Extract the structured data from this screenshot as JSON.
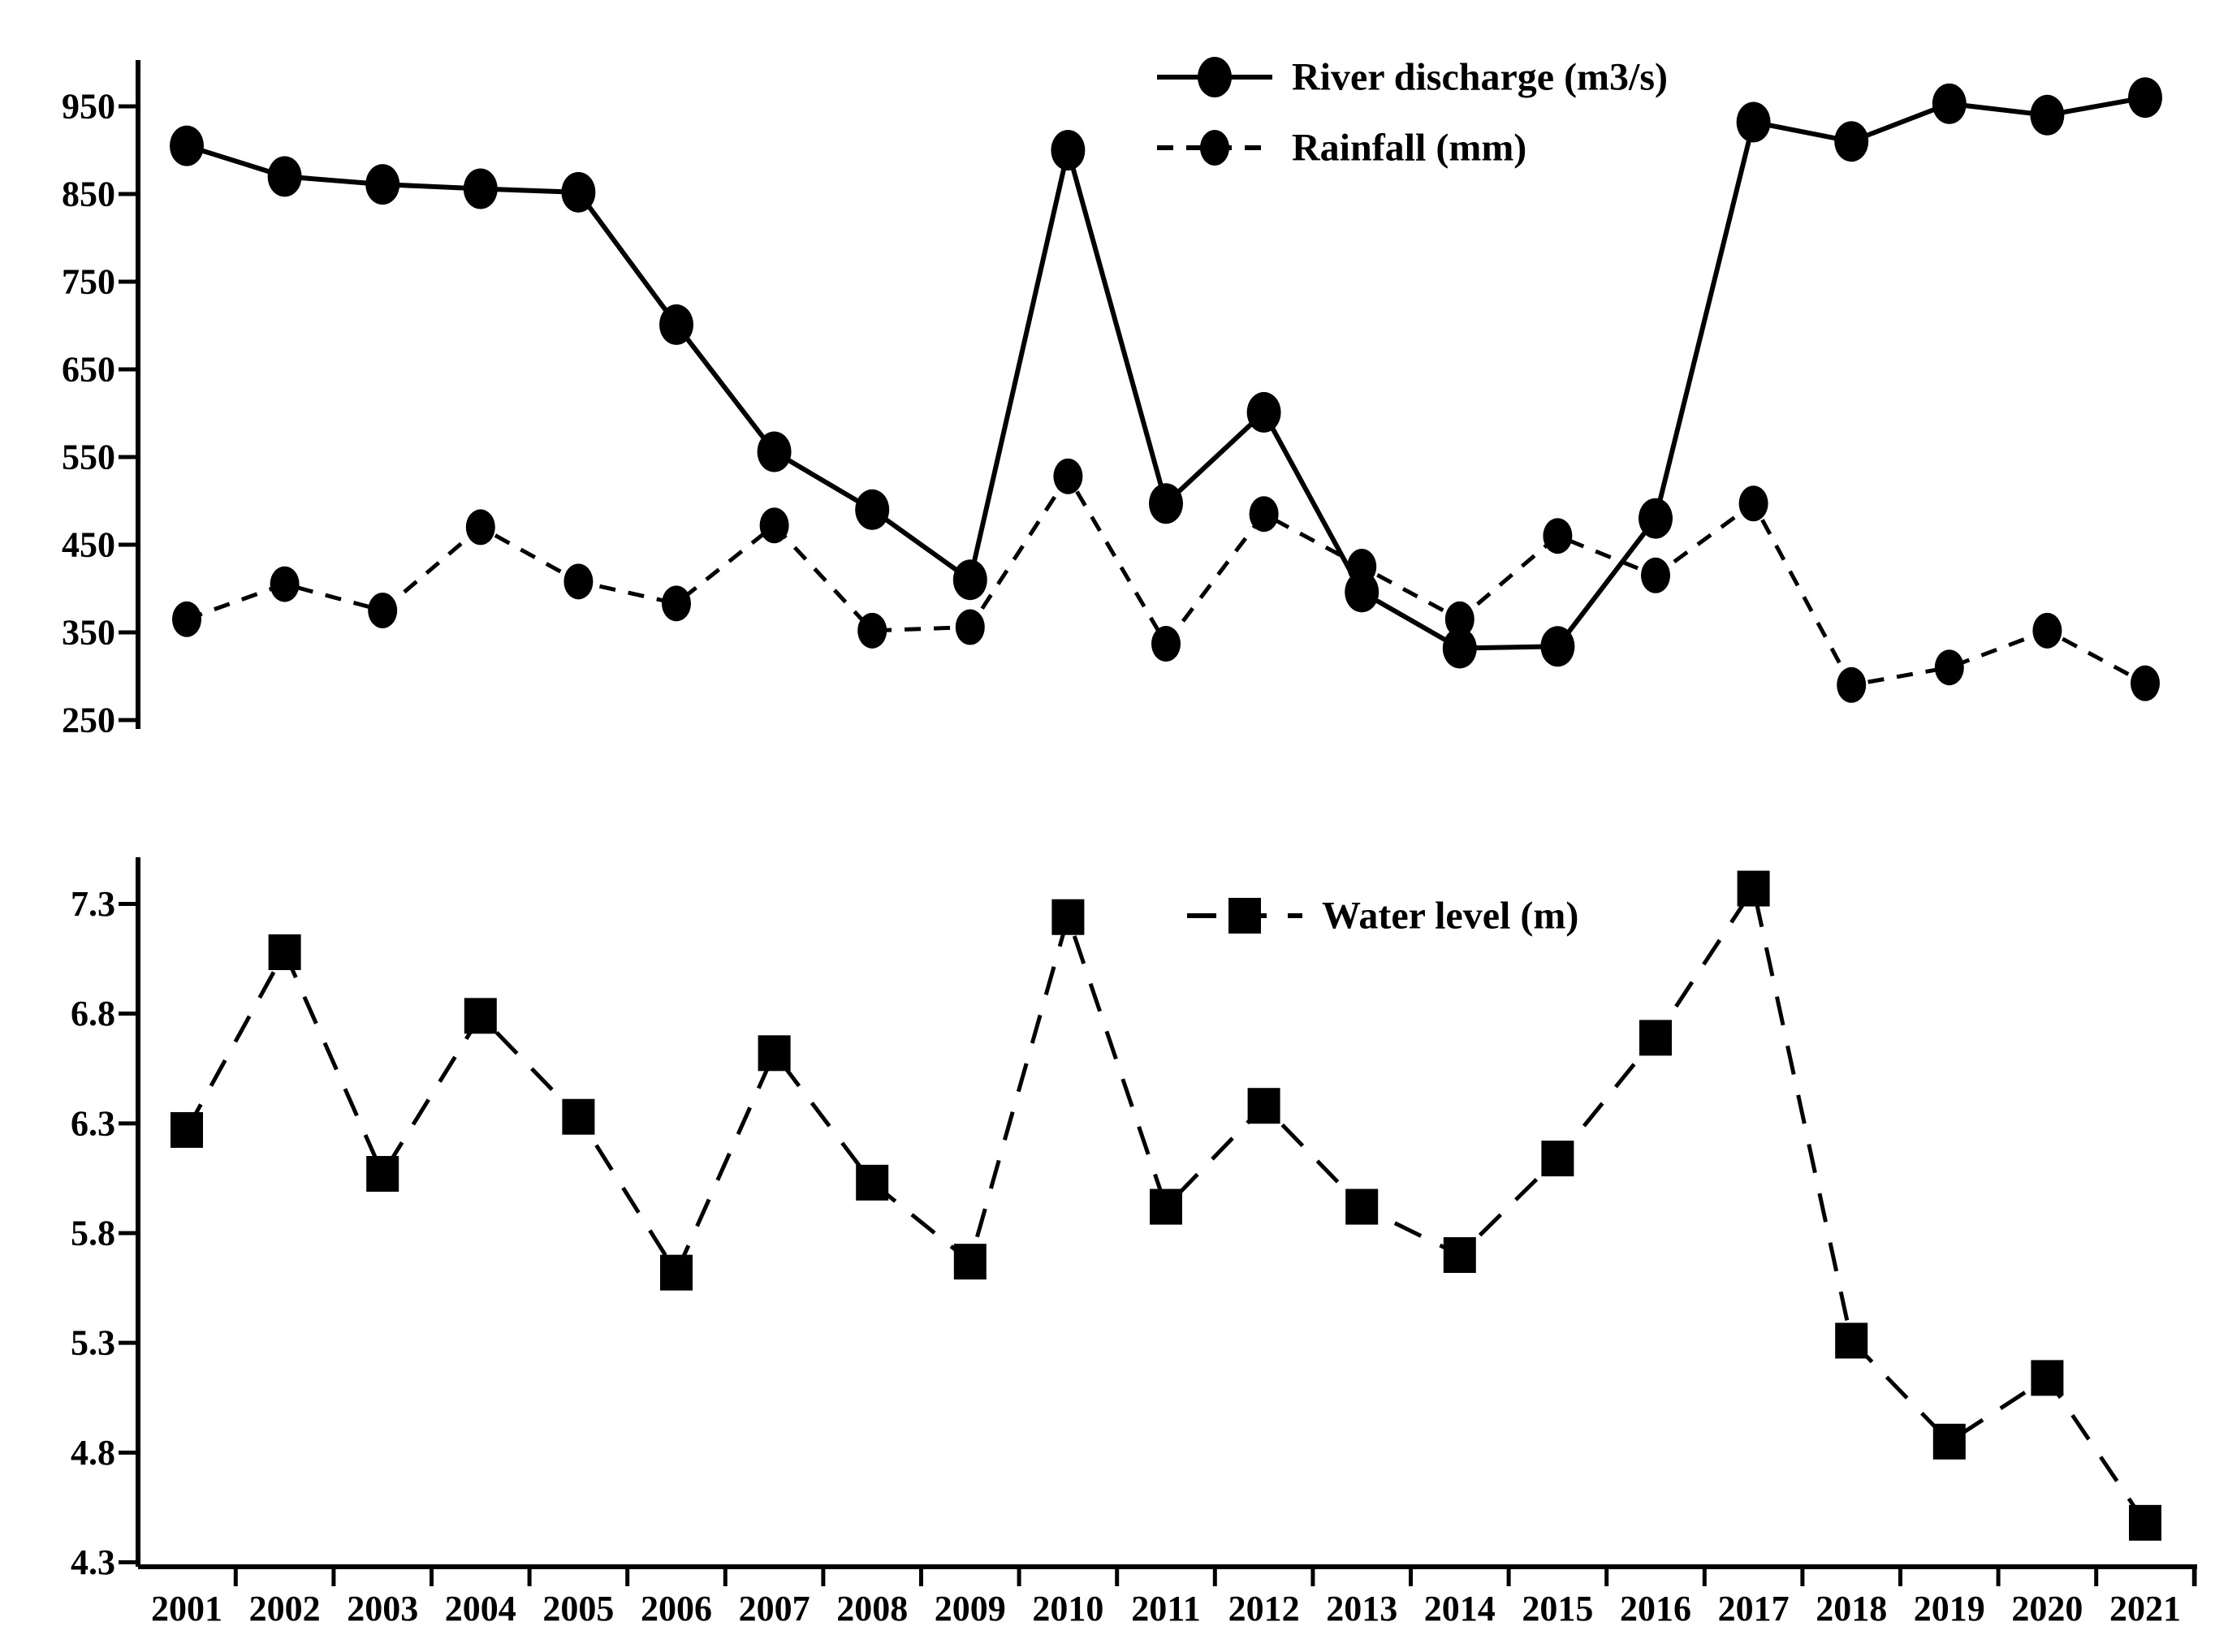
{
  "figure": {
    "background_color": "#ffffff",
    "ink_color": "#000000"
  },
  "x_axis": {
    "year_labels": [
      "2001",
      "2002",
      "2003",
      "2004",
      "2005",
      "2006",
      "2007",
      "2008",
      "2009",
      "2010",
      "2011",
      "2012",
      "2013",
      "2014",
      "2015",
      "2016",
      "2017",
      "2018",
      "2019",
      "2020",
      "2021"
    ]
  },
  "chart_data": [
    {
      "type": "line",
      "position": "top",
      "title": "",
      "x": [
        2001,
        2002,
        2003,
        2004,
        2005,
        2006,
        2007,
        2008,
        2009,
        2010,
        2011,
        2012,
        2013,
        2014,
        2015,
        2016,
        2017,
        2018,
        2019,
        2020,
        2021
      ],
      "ylim": [
        250,
        950
      ],
      "yticks": [
        950,
        850,
        750,
        650,
        550,
        450,
        350,
        250
      ],
      "ytick_labels": [
        "950",
        "850",
        "750",
        "650",
        "550",
        "450",
        "350",
        "250"
      ],
      "grid": false,
      "legend_position": "top-center",
      "series": [
        {
          "name": "River discharge (m3/s)",
          "line": "solid",
          "marker": "circle",
          "values": [
            905,
            870,
            861,
            856,
            852,
            701,
            556,
            490,
            410,
            900,
            497,
            601,
            396,
            332,
            334,
            480,
            932,
            910,
            953,
            940,
            960
          ]
        },
        {
          "name": "Rainfall (mm)",
          "line": "dashed",
          "marker": "circle",
          "values": [
            365,
            405,
            375,
            470,
            408,
            383,
            472,
            352,
            356,
            528,
            337,
            485,
            425,
            365,
            460,
            415,
            497,
            290,
            310,
            352,
            292
          ]
        }
      ]
    },
    {
      "type": "line",
      "position": "bottom",
      "title": "",
      "x": [
        2001,
        2002,
        2003,
        2004,
        2005,
        2006,
        2007,
        2008,
        2009,
        2010,
        2011,
        2012,
        2013,
        2014,
        2015,
        2016,
        2017,
        2018,
        2019,
        2020,
        2021
      ],
      "ylim": [
        4.3,
        7.3
      ],
      "yticks": [
        7.3,
        6.8,
        6.3,
        5.8,
        5.3,
        4.8,
        4.3
      ],
      "ytick_labels": [
        "7.3",
        "6.8",
        "6.3",
        "5.8",
        "5.3",
        "4.8",
        "4.3"
      ],
      "grid": false,
      "legend_position": "top-center",
      "series": [
        {
          "name": "Water level (m)",
          "line": "long-dashed",
          "marker": "square",
          "values": [
            6.27,
            7.08,
            6.07,
            6.79,
            6.33,
            5.62,
            6.62,
            6.03,
            5.67,
            7.24,
            5.92,
            6.38,
            5.92,
            5.7,
            6.14,
            6.69,
            7.37,
            5.31,
            4.85,
            5.14,
            4.48
          ]
        }
      ]
    }
  ]
}
